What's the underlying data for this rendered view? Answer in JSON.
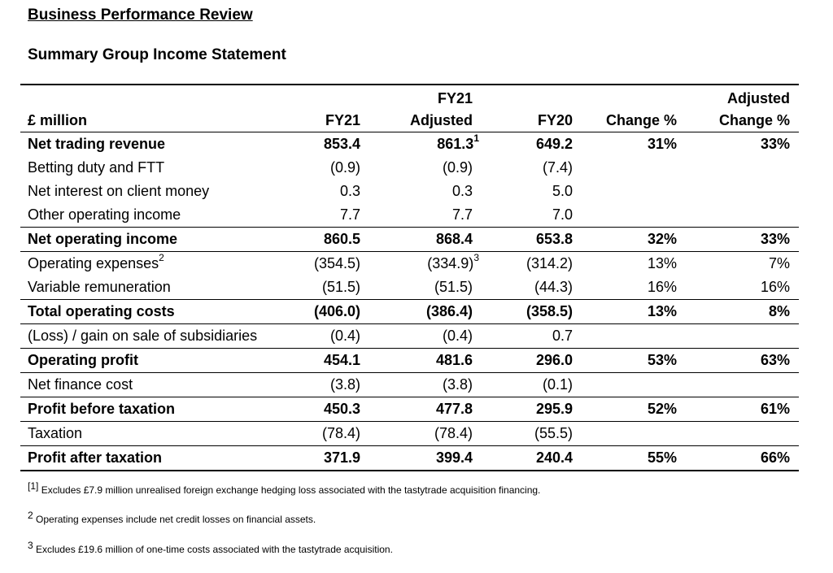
{
  "heading": "Business Performance Review",
  "subheading": "Summary Group Income Statement",
  "table": {
    "header": {
      "label": "£ million",
      "fy21": "FY21",
      "fy21_adj_top": "FY21",
      "fy21_adj_bottom": "Adjusted",
      "fy20": "FY20",
      "change": "Change %",
      "adj_change_top": "Adjusted",
      "adj_change_bottom": "Change %"
    },
    "rows": [
      {
        "label": "Net trading revenue",
        "fy21": "853.4",
        "fy21_adj": "861.3",
        "fy21_adj_sup": "1",
        "fy20": "649.2",
        "change": "31%",
        "adj_change": "33%"
      },
      {
        "label": "Betting duty and FTT",
        "fy21": "(0.9)",
        "fy21_adj": "(0.9)",
        "fy20": "(7.4)",
        "change": "",
        "adj_change": ""
      },
      {
        "label": "Net interest on client money",
        "fy21": "0.3",
        "fy21_adj": "0.3",
        "fy20": "5.0",
        "change": "",
        "adj_change": ""
      },
      {
        "label": "Other operating income",
        "fy21": "7.7",
        "fy21_adj": "7.7",
        "fy20": "7.0",
        "change": "",
        "adj_change": ""
      },
      {
        "label": "Net operating income",
        "fy21": "860.5",
        "fy21_adj": "868.4",
        "fy20": "653.8",
        "change": "32%",
        "adj_change": "33%"
      },
      {
        "label": "Operating expenses",
        "label_sup": "2",
        "fy21": "(354.5)",
        "fy21_adj": "(334.9)",
        "fy21_adj_sup": "3",
        "fy20": "(314.2)",
        "change": "13%",
        "adj_change": "7%"
      },
      {
        "label": "Variable remuneration",
        "fy21": "(51.5)",
        "fy21_adj": "(51.5)",
        "fy20": "(44.3)",
        "change": "16%",
        "adj_change": "16%"
      },
      {
        "label": "Total operating costs",
        "fy21": "(406.0)",
        "fy21_adj": "(386.4)",
        "fy20": "(358.5)",
        "change": "13%",
        "adj_change": "8%"
      },
      {
        "label": "(Loss) / gain on sale of subsidiaries",
        "fy21": "(0.4)",
        "fy21_adj": "(0.4)",
        "fy20": "0.7",
        "change": "",
        "adj_change": ""
      },
      {
        "label": "Operating profit",
        "fy21": "454.1",
        "fy21_adj": "481.6",
        "fy20": "296.0",
        "change": "53%",
        "adj_change": "63%"
      },
      {
        "label": "Net finance cost",
        "fy21": "(3.8)",
        "fy21_adj": "(3.8)",
        "fy20": "(0.1)",
        "change": "",
        "adj_change": ""
      },
      {
        "label": "Profit before taxation",
        "fy21": "450.3",
        "fy21_adj": "477.8",
        "fy20": "295.9",
        "change": "52%",
        "adj_change": "61%"
      },
      {
        "label": "Taxation",
        "fy21": "(78.4)",
        "fy21_adj": "(78.4)",
        "fy20": "(55.5)",
        "change": "",
        "adj_change": ""
      },
      {
        "label": "Profit after taxation",
        "fy21": "371.9",
        "fy21_adj": "399.4",
        "fy20": "240.4",
        "change": "55%",
        "adj_change": "66%"
      }
    ]
  },
  "footnotes": [
    {
      "mark": "[1]",
      "text": "Excludes £7.9 million unrealised foreign exchange hedging loss associated with the tastytrade acquisition financing."
    },
    {
      "mark": "2",
      "text": "Operating expenses include net credit losses on financial assets."
    },
    {
      "mark": "3",
      "text": "Excludes £19.6 million of one-time costs associated with the tastytrade acquisition."
    }
  ]
}
